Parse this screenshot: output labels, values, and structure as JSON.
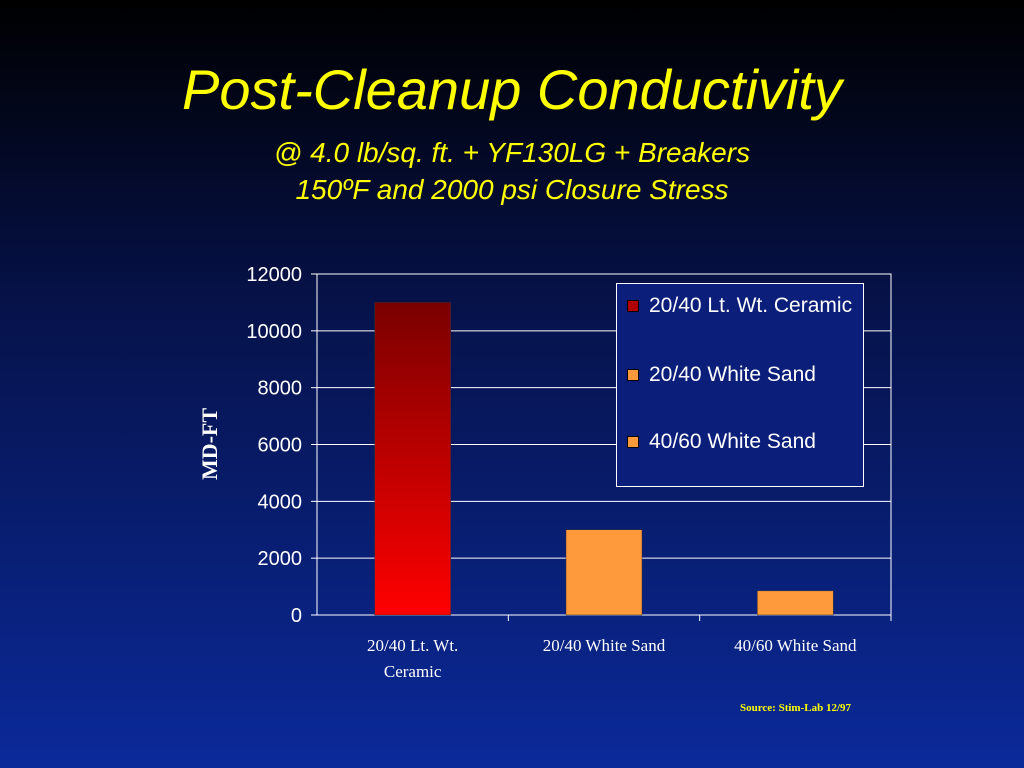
{
  "title": "Post-Cleanup Conductivity",
  "subtitle_line1": "@ 4.0 lb/sq. ft. + YF130LG + Breakers",
  "subtitle_line2": "150ºF and 2000 psi Closure Stress",
  "source": "Source: Stim-Lab 12/97",
  "colors": {
    "title": "#ffff00",
    "bar_ceramic_top": "#7a0000",
    "bar_ceramic_bottom": "#ff0000",
    "bar_sand": "#ff9a3c"
  },
  "chart_data": {
    "type": "bar",
    "categories": [
      "20/40 Lt. Wt. Ceramic",
      "20/40 White Sand",
      "40/60 White Sand"
    ],
    "category_label_lines": [
      [
        "20/40 Lt. Wt.",
        "Ceramic"
      ],
      [
        "20/40 White Sand"
      ],
      [
        "40/60 White Sand"
      ]
    ],
    "values": [
      11000,
      3000,
      850
    ],
    "ylabel": "MD-FT",
    "xlabel": "",
    "ylim": [
      0,
      12000
    ],
    "yticks": [
      0,
      2000,
      4000,
      6000,
      8000,
      10000,
      12000
    ],
    "grid": true,
    "legend_position": "top-right",
    "legend": [
      "20/40 Lt. Wt. Ceramic",
      "20/40 White Sand",
      "40/60 White Sand"
    ]
  }
}
